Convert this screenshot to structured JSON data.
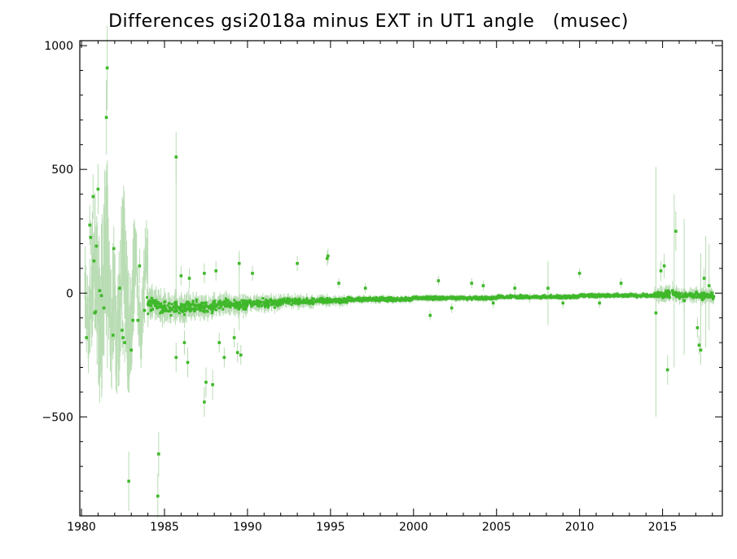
{
  "chart_data": {
    "type": "scatter",
    "title": "Differences gsi2018a minus EXT in UT1 angle   (musec)",
    "xlabel": "",
    "ylabel": "",
    "xlim": [
      1979.9,
      2018.6
    ],
    "ylim": [
      -900,
      1020
    ],
    "x_ticks": [
      1980,
      1985,
      1990,
      1995,
      2000,
      2005,
      2010,
      2015
    ],
    "x_tick_labels": [
      "1980",
      "1985",
      "1990",
      "1995",
      "2000",
      "2005",
      "2010",
      "2015"
    ],
    "y_ticks": [
      -500,
      0,
      500,
      1000
    ],
    "y_tick_labels": [
      "−500",
      "0",
      "500",
      "1000"
    ],
    "grid": false,
    "point_color": "#3fb82a",
    "errorbar_color": "#b9dcb4",
    "series": [
      {
        "values_note_skip": true,
        "points": [
          [
            1980.3,
            -180,
            60
          ],
          [
            1980.5,
            275,
            80
          ],
          [
            1980.55,
            225,
            70
          ],
          [
            1980.7,
            390,
            90
          ],
          [
            1980.75,
            130,
            70
          ],
          [
            1980.8,
            -80,
            60
          ],
          [
            1980.85,
            -75,
            60
          ],
          [
            1980.9,
            190,
            80
          ],
          [
            1981.0,
            420,
            100
          ],
          [
            1981.1,
            10,
            60
          ],
          [
            1981.2,
            -10,
            50
          ],
          [
            1981.35,
            -60,
            60
          ],
          [
            1981.5,
            710,
            150
          ],
          [
            1981.55,
            910,
            170
          ],
          [
            1981.9,
            -170,
            80
          ],
          [
            1981.95,
            180,
            90
          ],
          [
            1982.3,
            20,
            60
          ],
          [
            1982.45,
            -150,
            70
          ],
          [
            1982.5,
            -180,
            70
          ],
          [
            1982.6,
            -200,
            80
          ],
          [
            1982.85,
            -760,
            120
          ],
          [
            1983.0,
            -230,
            80
          ],
          [
            1983.1,
            -110,
            60
          ],
          [
            1983.4,
            -110,
            60
          ],
          [
            1983.5,
            110,
            70
          ],
          [
            1983.8,
            -70,
            50
          ],
          [
            1984.6,
            -820,
            90
          ],
          [
            1984.65,
            -650,
            90
          ],
          [
            1985.7,
            550,
            100
          ],
          [
            1985.7,
            -260,
            60
          ],
          [
            1986.2,
            -200,
            50
          ],
          [
            1986.4,
            -280,
            60
          ],
          [
            1987.4,
            -440,
            60
          ],
          [
            1987.5,
            -360,
            60
          ],
          [
            1987.9,
            -370,
            60
          ],
          [
            1988.3,
            -200,
            40
          ],
          [
            1988.6,
            -260,
            40
          ],
          [
            1989.2,
            -180,
            40
          ],
          [
            1989.4,
            -240,
            40
          ],
          [
            1989.6,
            -250,
            40
          ],
          [
            1986.0,
            70,
            40
          ],
          [
            1986.5,
            60,
            40
          ],
          [
            1987.4,
            80,
            40
          ],
          [
            1988.1,
            90,
            40
          ],
          [
            1989.5,
            120,
            40
          ],
          [
            1990.3,
            80,
            30
          ],
          [
            1993.0,
            120,
            30
          ],
          [
            1994.8,
            140,
            30
          ],
          [
            1994.85,
            150,
            30
          ],
          [
            1995.5,
            40,
            20
          ],
          [
            1997.1,
            20,
            20
          ],
          [
            2001.5,
            50,
            20
          ],
          [
            2003.5,
            40,
            20
          ],
          [
            2004.2,
            30,
            20
          ],
          [
            2006.1,
            20,
            20
          ],
          [
            2008.1,
            20,
            30
          ],
          [
            2010.0,
            80,
            20
          ],
          [
            2011.2,
            -40,
            20
          ],
          [
            2012.5,
            40,
            20
          ],
          [
            2014.6,
            -80,
            40
          ],
          [
            2014.9,
            90,
            40
          ],
          [
            2015.1,
            110,
            50
          ],
          [
            2015.3,
            -310,
            60
          ],
          [
            2015.6,
            10,
            40
          ],
          [
            2015.8,
            250,
            80
          ],
          [
            2016.3,
            -30,
            40
          ],
          [
            2017.1,
            -140,
            40
          ],
          [
            2017.2,
            -210,
            40
          ],
          [
            2017.3,
            -230,
            40
          ],
          [
            2017.5,
            60,
            40
          ],
          [
            2017.8,
            30,
            40
          ],
          [
            2001.0,
            -90,
            20
          ],
          [
            2002.3,
            -60,
            20
          ],
          [
            2004.8,
            -40,
            20
          ],
          [
            2007.0,
            -20,
            20
          ],
          [
            2009.0,
            -40,
            20
          ]
        ],
        "bands": [
          {
            "from": 1983.9,
            "to": 1985.0,
            "center": -50,
            "spread": 45
          },
          {
            "from": 1985.0,
            "to": 1986.5,
            "center": -60,
            "spread": 40
          },
          {
            "from": 1986.5,
            "to": 1988.0,
            "center": -55,
            "spread": 33
          },
          {
            "from": 1988.0,
            "to": 1990.0,
            "center": -45,
            "spread": 28
          },
          {
            "from": 1990.0,
            "to": 1992.0,
            "center": -40,
            "spread": 22
          },
          {
            "from": 1992.0,
            "to": 1994.0,
            "center": -35,
            "spread": 18
          },
          {
            "from": 1994.0,
            "to": 1996.0,
            "center": -30,
            "spread": 14
          },
          {
            "from": 1996.0,
            "to": 2000.0,
            "center": -25,
            "spread": 10
          },
          {
            "from": 2000.0,
            "to": 2005.0,
            "center": -20,
            "spread": 9
          },
          {
            "from": 2005.0,
            "to": 2010.0,
            "center": -15,
            "spread": 8
          },
          {
            "from": 2010.0,
            "to": 2014.5,
            "center": -10,
            "spread": 8
          },
          {
            "from": 2014.5,
            "to": 2016.0,
            "center": -5,
            "spread": 22
          },
          {
            "from": 2016.0,
            "to": 2018.1,
            "center": -10,
            "spread": 20
          }
        ],
        "tall_errorbars": [
          [
            2014.6,
            510,
            -500
          ],
          [
            2015.7,
            400,
            -300
          ],
          [
            2016.3,
            300,
            -250
          ],
          [
            2017.3,
            160,
            -290
          ],
          [
            2017.6,
            230,
            -220
          ],
          [
            2017.8,
            200,
            -150
          ],
          [
            1985.7,
            560,
            -90
          ],
          [
            1989.5,
            170,
            -150
          ],
          [
            2008.1,
            130,
            -130
          ]
        ]
      }
    ]
  }
}
